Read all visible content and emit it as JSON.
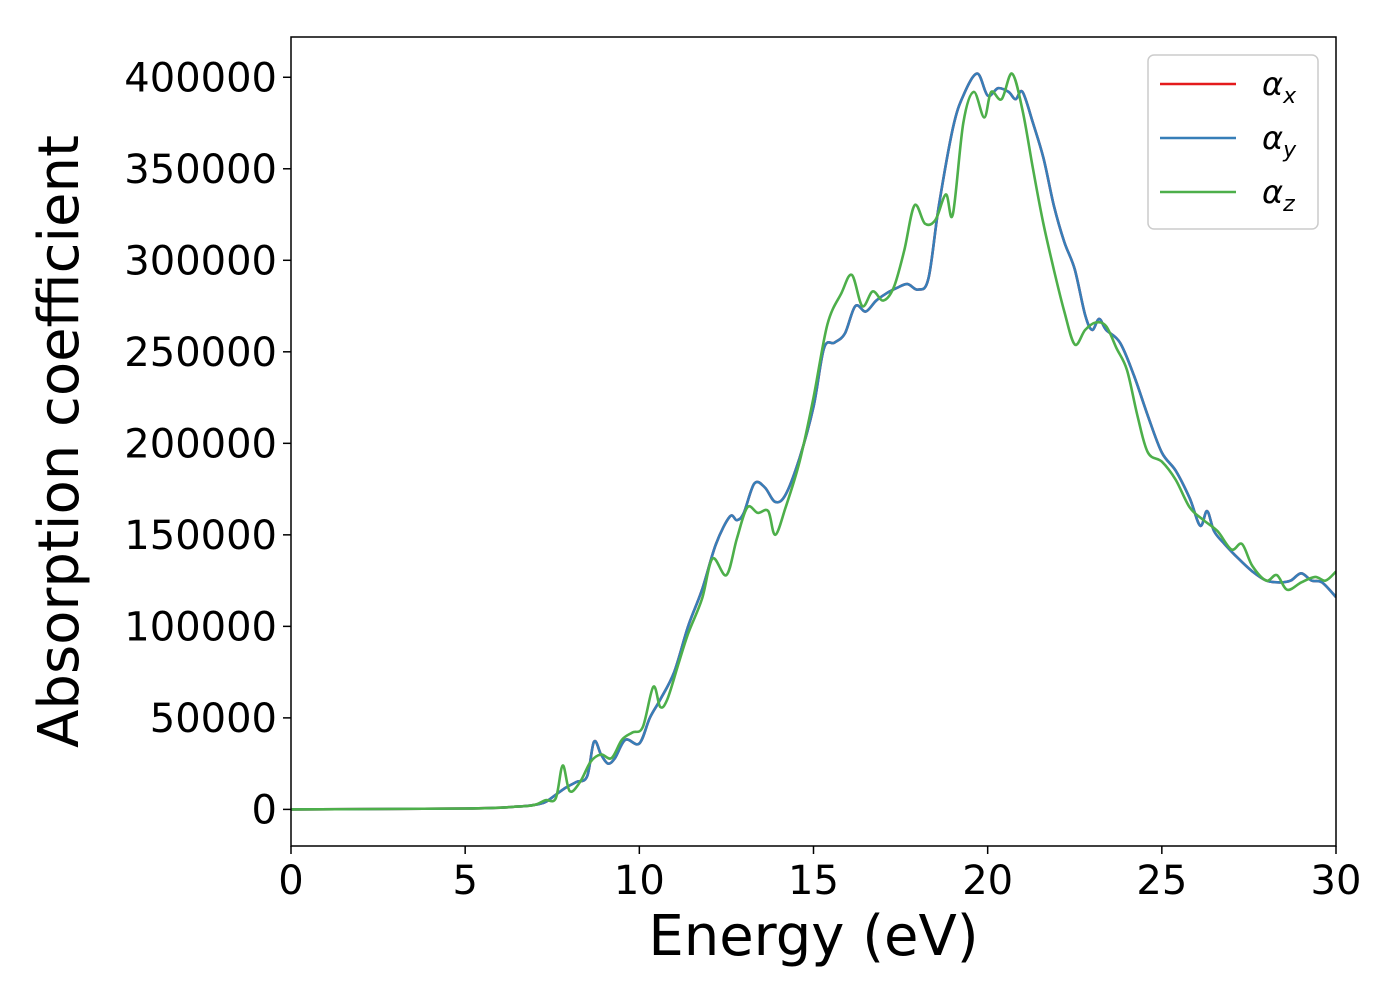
{
  "chart_data": {
    "type": "line",
    "title": "",
    "xlabel": "Energy (eV)",
    "ylabel": "Absorption coefficient",
    "xlim": [
      0,
      30
    ],
    "ylim": [
      -20000,
      422000
    ],
    "xticks": [
      0,
      5,
      10,
      15,
      20,
      25,
      30
    ],
    "yticks": [
      0,
      50000,
      100000,
      150000,
      200000,
      250000,
      300000,
      350000,
      400000
    ],
    "grid": false,
    "legend_position": "top-right",
    "series": [
      {
        "name": "α",
        "sub": "x",
        "color": "#e41a1c",
        "x": [
          0,
          5,
          6.5,
          7,
          7.3,
          7.6,
          7.9,
          8.2,
          8.5,
          8.7,
          8.9,
          9.1,
          9.3,
          9.6,
          10.0,
          10.3,
          10.6,
          11.0,
          11.4,
          11.8,
          12.2,
          12.6,
          12.8,
          13.0,
          13.3,
          13.6,
          13.9,
          14.2,
          14.6,
          15.0,
          15.3,
          15.6,
          15.9,
          16.2,
          16.5,
          16.8,
          17.1,
          17.4,
          17.7,
          18.0,
          18.3,
          18.6,
          19.0,
          19.3,
          19.7,
          20.0,
          20.3,
          20.6,
          20.8,
          21.0,
          21.3,
          21.6,
          21.9,
          22.2,
          22.5,
          22.8,
          23.0,
          23.2,
          23.4,
          23.8,
          24.2,
          24.6,
          25.0,
          25.4,
          25.8,
          26.1,
          26.3,
          26.5,
          26.8,
          27.2,
          27.6,
          28.0,
          28.4,
          28.7,
          29.0,
          29.3,
          29.6,
          30.0
        ],
        "y": [
          0,
          500,
          1500,
          2500,
          4000,
          8000,
          12000,
          15000,
          18000,
          37000,
          30000,
          25000,
          28000,
          38000,
          36000,
          50000,
          60000,
          75000,
          100000,
          120000,
          145000,
          160000,
          158000,
          162000,
          178000,
          176000,
          168000,
          172000,
          192000,
          220000,
          252000,
          255000,
          260000,
          275000,
          272000,
          278000,
          282000,
          285000,
          287000,
          284000,
          290000,
          330000,
          372000,
          390000,
          402000,
          390000,
          394000,
          392000,
          388000,
          392000,
          375000,
          356000,
          330000,
          310000,
          295000,
          270000,
          262000,
          268000,
          262000,
          255000,
          237000,
          215000,
          195000,
          185000,
          170000,
          155000,
          163000,
          152000,
          145000,
          137000,
          130000,
          125000,
          124000,
          125000,
          129000,
          125000,
          124000,
          116000
        ]
      },
      {
        "name": "α",
        "sub": "y",
        "color": "#377eb8",
        "x": [
          0,
          5,
          6.5,
          7,
          7.3,
          7.6,
          7.9,
          8.2,
          8.5,
          8.7,
          8.9,
          9.1,
          9.3,
          9.6,
          10.0,
          10.3,
          10.6,
          11.0,
          11.4,
          11.8,
          12.2,
          12.6,
          12.8,
          13.0,
          13.3,
          13.6,
          13.9,
          14.2,
          14.6,
          15.0,
          15.3,
          15.6,
          15.9,
          16.2,
          16.5,
          16.8,
          17.1,
          17.4,
          17.7,
          18.0,
          18.3,
          18.6,
          19.0,
          19.3,
          19.7,
          20.0,
          20.3,
          20.6,
          20.8,
          21.0,
          21.3,
          21.6,
          21.9,
          22.2,
          22.5,
          22.8,
          23.0,
          23.2,
          23.4,
          23.8,
          24.2,
          24.6,
          25.0,
          25.4,
          25.8,
          26.1,
          26.3,
          26.5,
          26.8,
          27.2,
          27.6,
          28.0,
          28.4,
          28.7,
          29.0,
          29.3,
          29.6,
          30.0
        ],
        "y": [
          0,
          500,
          1500,
          2500,
          4000,
          8000,
          12000,
          15000,
          18000,
          37000,
          30000,
          25000,
          28000,
          38000,
          36000,
          50000,
          60000,
          75000,
          100000,
          120000,
          145000,
          160000,
          158000,
          162000,
          178000,
          176000,
          168000,
          172000,
          192000,
          220000,
          252000,
          255000,
          260000,
          275000,
          272000,
          278000,
          282000,
          285000,
          287000,
          284000,
          290000,
          330000,
          372000,
          390000,
          402000,
          390000,
          394000,
          392000,
          388000,
          392000,
          375000,
          356000,
          330000,
          310000,
          295000,
          270000,
          262000,
          268000,
          262000,
          255000,
          237000,
          215000,
          195000,
          185000,
          170000,
          155000,
          163000,
          152000,
          145000,
          137000,
          130000,
          125000,
          124000,
          125000,
          129000,
          125000,
          124000,
          116000
        ]
      },
      {
        "name": "α",
        "sub": "z",
        "color": "#4daf4a",
        "x": [
          0,
          5,
          6.5,
          7,
          7.3,
          7.6,
          7.8,
          8.0,
          8.3,
          8.6,
          8.9,
          9.2,
          9.5,
          9.8,
          10.1,
          10.4,
          10.6,
          10.8,
          11.1,
          11.4,
          11.8,
          12.1,
          12.5,
          12.8,
          13.1,
          13.4,
          13.7,
          13.9,
          14.2,
          14.6,
          15.0,
          15.4,
          15.8,
          16.1,
          16.4,
          16.7,
          17.0,
          17.3,
          17.6,
          17.9,
          18.2,
          18.5,
          18.8,
          19.0,
          19.3,
          19.6,
          19.9,
          20.1,
          20.4,
          20.7,
          21.0,
          21.3,
          21.6,
          21.9,
          22.2,
          22.5,
          22.8,
          23.1,
          23.4,
          23.7,
          24.0,
          24.3,
          24.6,
          25.0,
          25.4,
          25.8,
          26.2,
          26.6,
          27.0,
          27.3,
          27.6,
          28.0,
          28.3,
          28.6,
          29.0,
          29.4,
          29.7,
          30.0
        ],
        "y": [
          0,
          500,
          1500,
          2500,
          5000,
          6000,
          24000,
          10000,
          15000,
          26000,
          30000,
          28000,
          38000,
          42000,
          45000,
          67000,
          56000,
          60000,
          78000,
          96000,
          115000,
          137000,
          128000,
          148000,
          165000,
          162000,
          163000,
          150000,
          165000,
          190000,
          225000,
          265000,
          282000,
          292000,
          275000,
          283000,
          278000,
          285000,
          305000,
          330000,
          320000,
          322000,
          336000,
          325000,
          375000,
          392000,
          378000,
          392000,
          388000,
          402000,
          382000,
          350000,
          320000,
          295000,
          272000,
          254000,
          262000,
          266000,
          264000,
          252000,
          240000,
          215000,
          195000,
          190000,
          180000,
          165000,
          158000,
          152000,
          142000,
          145000,
          133000,
          125000,
          128000,
          120000,
          124000,
          127000,
          125000,
          130000
        ]
      }
    ]
  }
}
